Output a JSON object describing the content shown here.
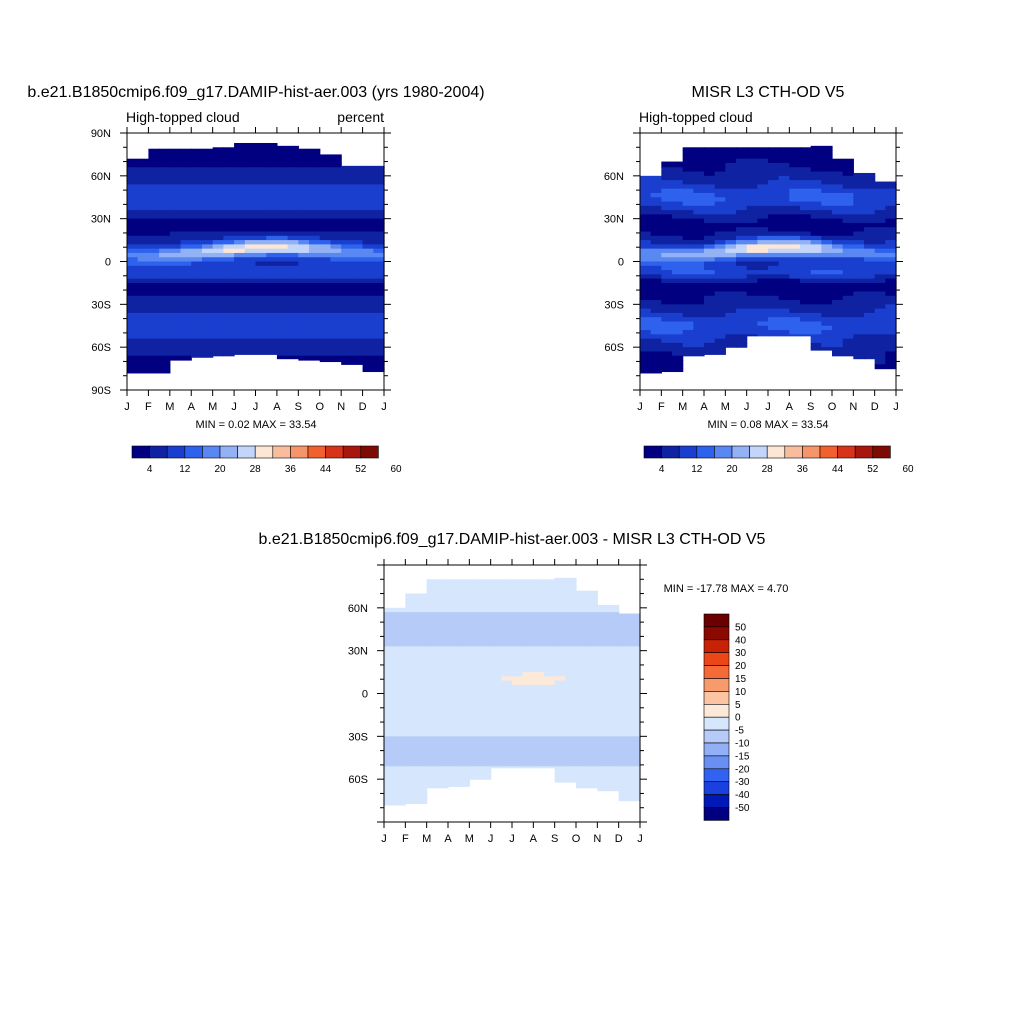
{
  "chart_data": [
    {
      "type": "heatmap",
      "title": "b.e21.B1850cmip6.f09_g17.DAMIP-hist-aer.003 (yrs 1980-2004)",
      "subtitle_left": "High-topped cloud",
      "subtitle_right": "percent",
      "x_tick_labels": [
        "J",
        "F",
        "M",
        "A",
        "M",
        "J",
        "J",
        "A",
        "S",
        "O",
        "N",
        "D",
        "J"
      ],
      "y_tick_labels": [
        "90N",
        "60N",
        "30N",
        "0",
        "30S",
        "60S",
        "90S"
      ],
      "xlim": [
        0,
        12
      ],
      "ylim": [
        -90,
        90
      ],
      "min_max_text": "MIN =   0.02 MAX =  33.54",
      "colorbar_ticks": [
        "4",
        "12",
        "20",
        "28",
        "36",
        "44",
        "52",
        "60"
      ],
      "data_extent": {
        "north_edge": [
          72,
          79,
          79,
          79,
          80,
          83,
          83,
          81,
          79,
          75,
          67,
          67
        ],
        "south_edge": [
          -78,
          -78,
          -69,
          -67,
          -66,
          -65,
          -65,
          -68,
          -69,
          -70,
          -72,
          -77
        ]
      },
      "features": [
        {
          "name": "ITCZ maximum",
          "lat_center": 7,
          "month_center": 6.5,
          "peak": 33.54
        },
        {
          "name": "subtropical minimum SH",
          "lat_center": -18,
          "month_center": 7,
          "value": 2
        },
        {
          "name": "polar minimum NH",
          "lat_center": 70,
          "value": 2
        }
      ]
    },
    {
      "type": "heatmap",
      "title": "MISR L3 CTH-OD V5",
      "subtitle_left": "High-topped cloud",
      "subtitle_right": "",
      "x_tick_labels": [
        "J",
        "F",
        "M",
        "A",
        "M",
        "J",
        "J",
        "A",
        "S",
        "O",
        "N",
        "D",
        "J"
      ],
      "y_tick_labels": [
        "60N",
        "30N",
        "0",
        "30S",
        "60S"
      ],
      "xlim": [
        0,
        12
      ],
      "ylim": [
        -90,
        90
      ],
      "min_max_text": "MIN =   0.08 MAX =  33.54",
      "colorbar_ticks": [
        "4",
        "12",
        "20",
        "28",
        "36",
        "44",
        "52",
        "60"
      ],
      "data_extent": {
        "north_edge": [
          60,
          70,
          80,
          80,
          80,
          80,
          80,
          80,
          81,
          72,
          62,
          56
        ],
        "south_edge": [
          -78,
          -77,
          -66,
          -65,
          -60,
          -52,
          -52,
          -52,
          -62,
          -66,
          -68,
          -75
        ]
      },
      "features": [
        {
          "name": "ITCZ maximum",
          "lat_center": 7,
          "month_center": 6.5,
          "peak": 33.54
        },
        {
          "name": "subtropical minimum SH",
          "lat_center": -18,
          "month_center": 7.5,
          "value": 2
        }
      ]
    },
    {
      "type": "heatmap",
      "title": "b.e21.B1850cmip6.f09_g17.DAMIP-hist-aer.003 - MISR L3 CTH-OD V5",
      "x_tick_labels": [
        "J",
        "F",
        "M",
        "A",
        "M",
        "J",
        "J",
        "A",
        "S",
        "O",
        "N",
        "D",
        "J"
      ],
      "y_tick_labels": [
        "60N",
        "30N",
        "0",
        "30S",
        "60S"
      ],
      "xlim": [
        0,
        12
      ],
      "ylim": [
        -90,
        90
      ],
      "min_max_text": "MIN = -17.78 MAX =   4.70",
      "colorbar_labels": [
        "50",
        "40",
        "30",
        "20",
        "15",
        "10",
        "5",
        "0",
        "-5",
        "-10",
        "-15",
        "-20",
        "-30",
        "-40",
        "-50"
      ],
      "data_extent": {
        "north_edge": [
          60,
          70,
          80,
          80,
          80,
          80,
          80,
          80,
          81,
          72,
          62,
          56
        ],
        "south_edge": [
          -78,
          -77,
          -66,
          -65,
          -60,
          -52,
          -52,
          -52,
          -62,
          -66,
          -68,
          -75
        ]
      },
      "features": [
        {
          "name": "positive bias near equator",
          "lat_center": 10,
          "month_center": 7,
          "value": 3
        },
        {
          "name": "negative bias NH midlatitude",
          "lat_center": 45,
          "value": -8
        },
        {
          "name": "negative bias SH midlatitude",
          "lat_center": -40,
          "value": -8
        }
      ]
    }
  ],
  "colors": {
    "colorbar12": [
      "#000080",
      "#0f22a2",
      "#1a3fcf",
      "#2e62ee",
      "#5a88f2",
      "#93b2f5",
      "#c3d6fa",
      "#fde6d4",
      "#f8bd9c",
      "#f6946b",
      "#f0612f",
      "#d8321a",
      "#a8170b",
      "#7e0a05"
    ],
    "diff_colors": [
      "#000080",
      "#0018b8",
      "#1b40e0",
      "#3262f0",
      "#6a8ff2",
      "#92b0f5",
      "#b6cbf8",
      "#d6e6fc",
      "#fde9d8",
      "#fbc4a2",
      "#f79a6c",
      "#f66a38",
      "#ec4517",
      "#c72106",
      "#8a0a02",
      "#6b0000"
    ]
  }
}
